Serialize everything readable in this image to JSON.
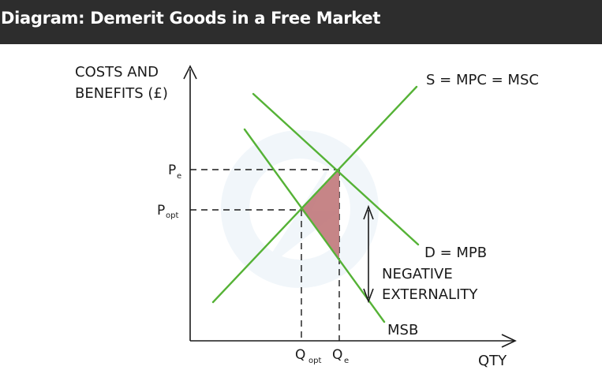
{
  "header": {
    "title": "Diagram: Demerit Goods in a Free Market"
  },
  "diagram": {
    "y_axis_label_line1": "COSTS AND",
    "y_axis_label_line2": "BENEFITS (£)",
    "x_axis_label": "QTY",
    "supply_label": "S = MPC = MSC",
    "demand_label": "D = MPB",
    "msb_label": "MSB",
    "pe_label": "P",
    "pe_sub": "e",
    "popt_label": "P",
    "popt_sub": "opt",
    "qopt_label": "Q",
    "qopt_sub": "opt",
    "qe_label": "Q",
    "qe_sub": "e",
    "externality_line1": "NEGATIVE",
    "externality_line2": "EXTERNALITY",
    "colors": {
      "curves": "#55b236",
      "triangle": "#c0787a",
      "axes": "#1a1a1a",
      "header_bg": "#2d2d2d"
    }
  }
}
